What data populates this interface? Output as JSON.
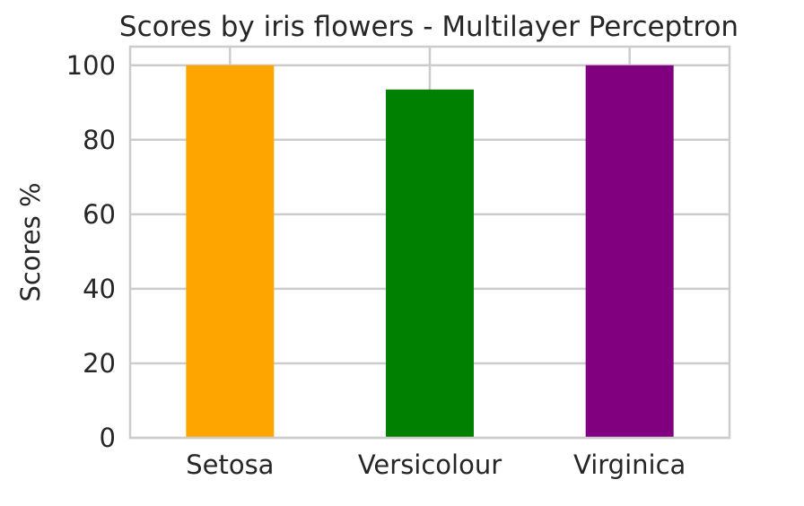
{
  "chart_data": {
    "type": "bar",
    "title": "Scores by iris flowers - Multilayer Perceptron",
    "xlabel": "",
    "ylabel": "Scores %",
    "categories": [
      "Setosa",
      "Versicolour",
      "Virginica"
    ],
    "values": [
      100,
      93.5,
      100
    ],
    "colors": [
      "#FFA500",
      "#008000",
      "#800080"
    ],
    "ylim": [
      0,
      105
    ],
    "yticks": [
      0,
      20,
      40,
      60,
      80,
      100
    ],
    "grid": true,
    "legend": "none"
  }
}
